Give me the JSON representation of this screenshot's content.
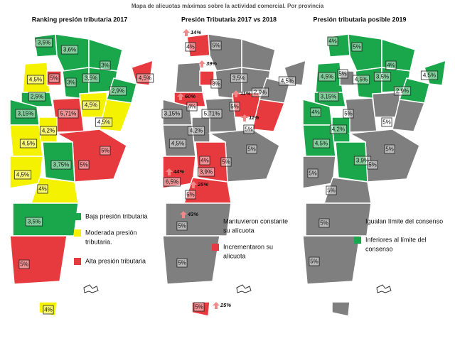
{
  "title": "Mapa de alícuotas máximas sobre la actividad comercial. Por provincia",
  "maps": [
    {
      "title": "Ranking presión tributaria 2017",
      "legend": [
        {
          "label": [
            "Baja presión tributaria"
          ],
          "color": "#1aa64a"
        },
        {
          "label": [
            "Moderada presión",
            "tributaria."
          ],
          "color": "#f5f200"
        },
        {
          "label": [
            "Alta presión tributaria"
          ],
          "color": "#e63a3f"
        }
      ],
      "labels": [
        "3,5%",
        "3,6%",
        "3%",
        "4,5%",
        "5%",
        "3%",
        "3,5%",
        "4,5%",
        "2,5%",
        "2,9%",
        "4,5%",
        "3,15%",
        "5,71%",
        "4,2%",
        "4,5%",
        "4,5%",
        "5%",
        "3,75%",
        "5%",
        "4,5%",
        "4%",
        "3,5%",
        "5%",
        "4%"
      ]
    },
    {
      "title": "Presión Tributaria 2017 vs 2018",
      "legend": [
        {
          "label": [
            "Mantuvieron constante",
            "su alícuota"
          ],
          "color": "#7f7f7f"
        },
        {
          "label": [
            "Incrementaron su",
            "alícuota"
          ],
          "color": "#e63a3f"
        }
      ],
      "labels": [
        "4%",
        "5%",
        "3,5%",
        "3%",
        "4,5%",
        "2,9%",
        "4%",
        "3,15%",
        "5,71%",
        "5%",
        "5%",
        "4,2%",
        "4,5%",
        "5%",
        "5%",
        "4%",
        "3,9%",
        "6,5%",
        "5%",
        "5%",
        "5%",
        "5%"
      ],
      "increases": [
        "14%",
        "39%",
        "60%",
        "11%",
        "11%",
        "44%",
        "25%",
        "43%",
        "25%"
      ]
    },
    {
      "title": "Presión tributaria posible 2019",
      "legend": [
        {
          "label": [
            "Igualan límite del consenso"
          ],
          "color": "#7f7f7f"
        },
        {
          "label": [
            "Inferiores al límite del",
            "consenso"
          ],
          "color": "#1aa64a"
        }
      ],
      "labels": [
        "4%",
        "5%",
        "4%",
        "4,5%",
        "5%",
        "4,5%",
        "3,5%",
        "4,5%",
        "3,15%",
        "2,9%",
        "4%",
        "5%",
        "5%",
        "4,2%",
        "4,5%",
        "5%",
        "3,9%",
        "5%",
        "5%",
        "5%",
        "5%",
        "5%"
      ]
    }
  ]
}
